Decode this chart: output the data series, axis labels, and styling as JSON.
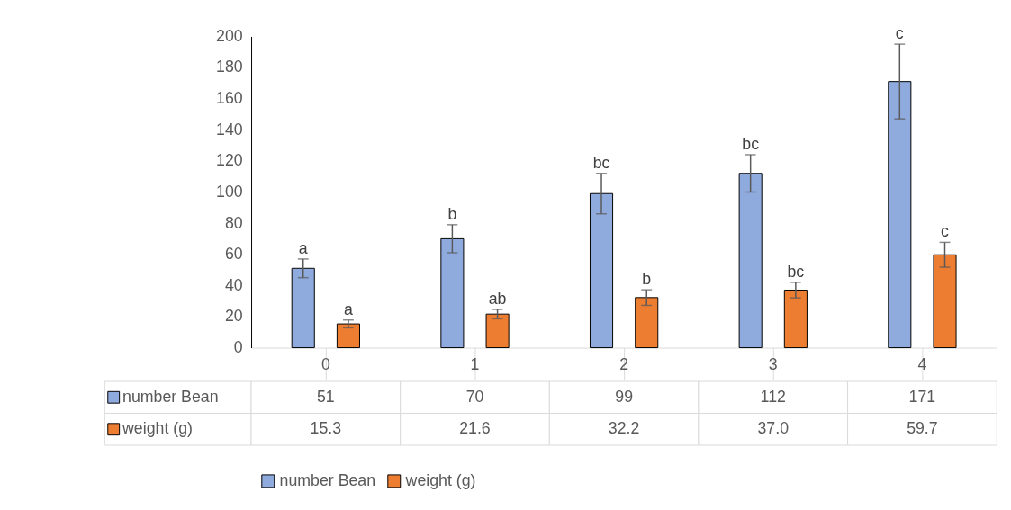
{
  "chart_data": {
    "type": "bar",
    "categories": [
      "0",
      "1",
      "2",
      "3",
      "4"
    ],
    "series": [
      {
        "name": "number Bean",
        "color": "#8faadc",
        "values": [
          51,
          70,
          99,
          112,
          171
        ],
        "errors": [
          6,
          9,
          13,
          12,
          24
        ],
        "value_labels": [
          "51",
          "70",
          "99",
          "112",
          "171"
        ]
      },
      {
        "name": "weight (g)",
        "color": "#ed7d31",
        "values": [
          15.3,
          21.6,
          32.2,
          37.0,
          59.7
        ],
        "errors": [
          2.5,
          3,
          5,
          5,
          8
        ],
        "value_labels": [
          "15.3",
          "21.6",
          "32.2",
          "37.0",
          "59.7"
        ]
      }
    ],
    "ylim": [
      0,
      200
    ],
    "yticks": [
      0,
      20,
      40,
      60,
      80,
      100,
      120,
      140,
      160,
      180,
      200
    ],
    "grid": false,
    "legend": "bottom",
    "annotations": [
      "a",
      "a",
      "b",
      "ab",
      "bc",
      "b",
      "bc",
      "bc",
      "c",
      "c"
    ]
  }
}
